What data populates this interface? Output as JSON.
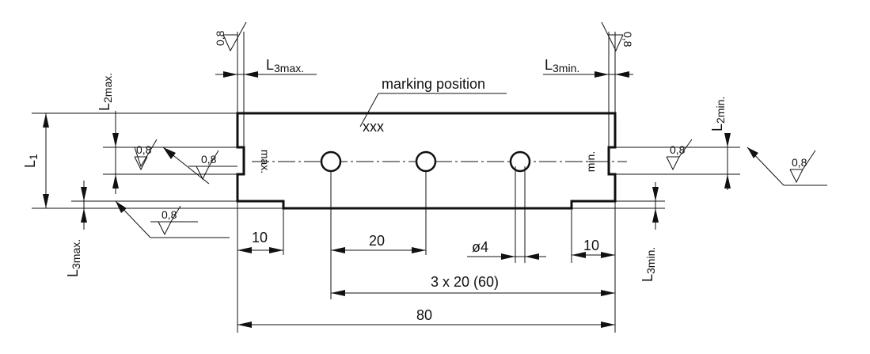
{
  "labels": {
    "marking_position": "marking position",
    "xxx": "xxx",
    "max": "max.",
    "min": "min.",
    "dim_10": "10",
    "dim_20": "20",
    "dim_3x20": "3 x 20 (60)",
    "dim_80": "80",
    "dim_d4": "ø4",
    "roughness": "0,8",
    "roughness_rotated": "0,8"
  },
  "dims": {
    "L1": {
      "main": "L",
      "sub": "1"
    },
    "L2max": {
      "main": "L",
      "sub": "2max."
    },
    "L2min": {
      "main": "L",
      "sub": "2min."
    },
    "L3max_top": {
      "main": "L",
      "sub": "3max."
    },
    "L3min_top": {
      "main": "L",
      "sub": "3min."
    },
    "L3max_side": {
      "main": "L",
      "sub": "3max."
    },
    "L3min_side": {
      "main": "L",
      "sub": "3min."
    }
  },
  "colors": {
    "ink": "#111111",
    "background": "#ffffff"
  }
}
